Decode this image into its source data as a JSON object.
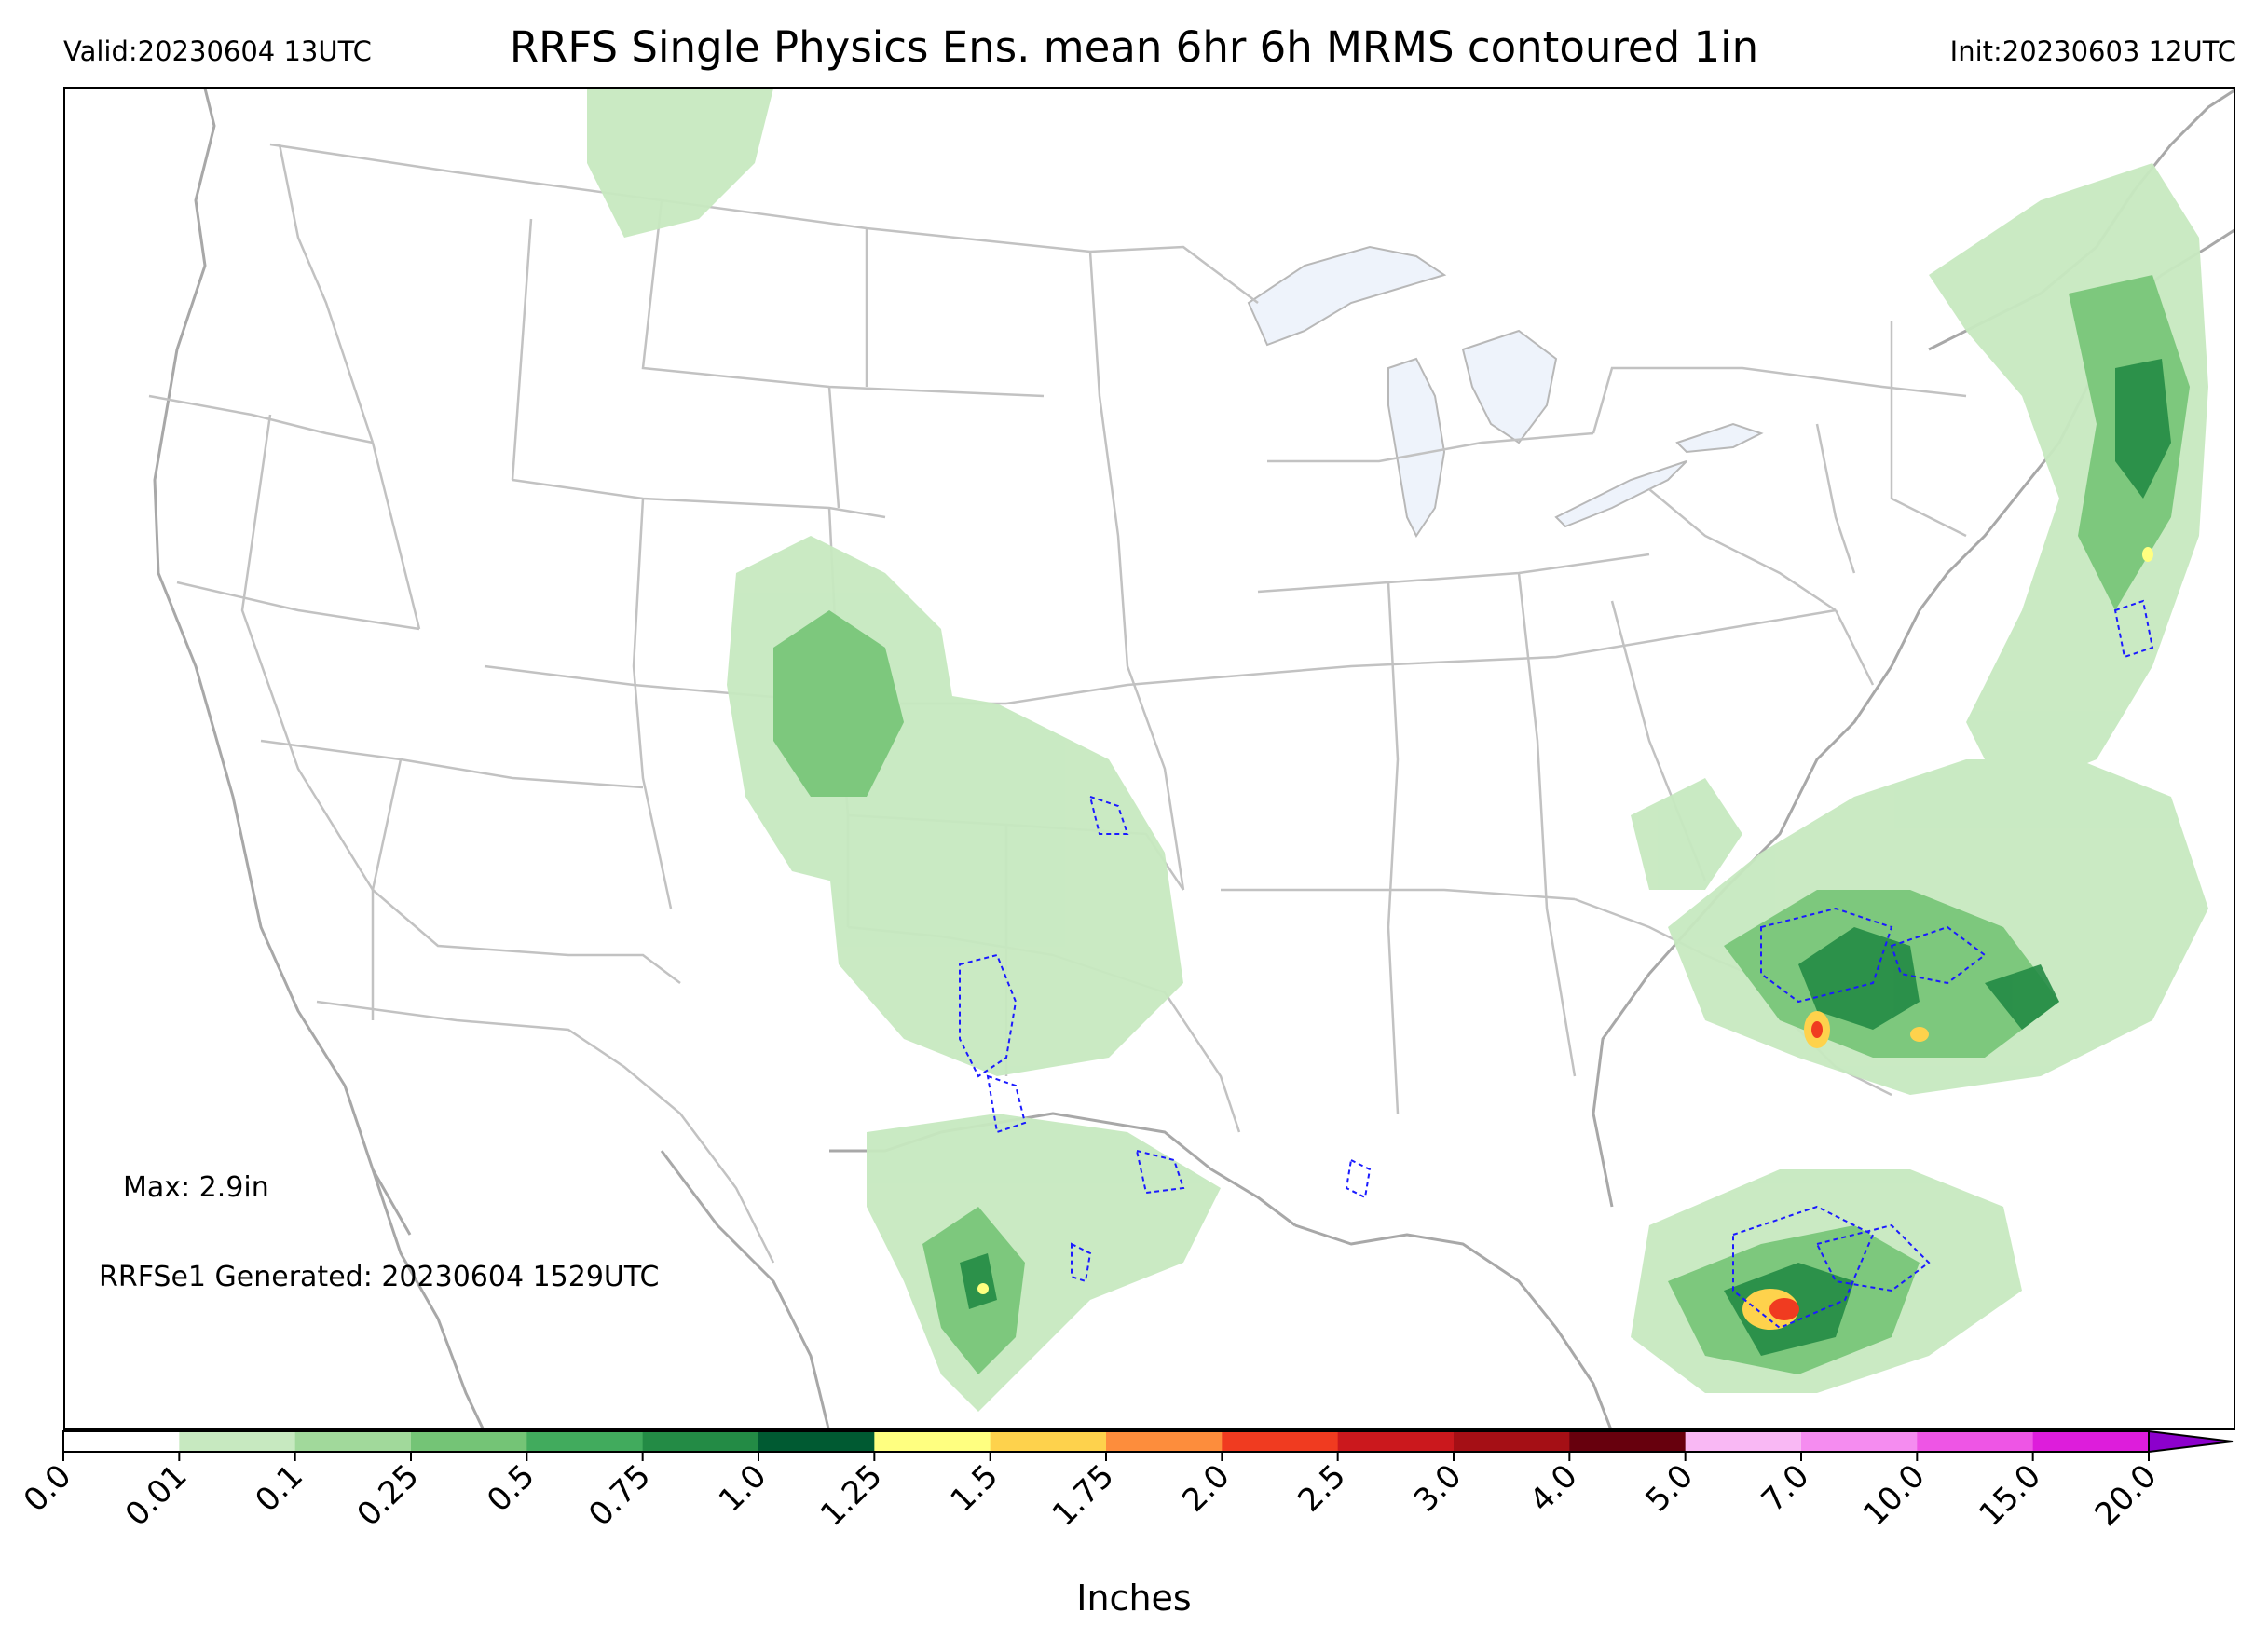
{
  "header": {
    "valid": "Valid:20230604 13UTC",
    "title": "RRFS Single Physics Ens. mean 6hr 6h MRMS contoured 1in",
    "init": "Init:20230603 12UTC"
  },
  "annotations": {
    "max": "Max: 2.9in",
    "generated": "RRFSe1 Generated: 20230604 1529UTC"
  },
  "colorbar": {
    "title": "Inches",
    "ticks": [
      "0.0",
      "0.01",
      "0.1",
      "0.25",
      "0.5",
      "0.75",
      "1.0",
      "1.25",
      "1.5",
      "1.75",
      "2.0",
      "2.5",
      "3.0",
      "4.0",
      "5.0",
      "7.0",
      "10.0",
      "15.0",
      "20.0"
    ],
    "colors": [
      "#ffffff",
      "#c7e9c0",
      "#a1d99b",
      "#74c476",
      "#41ab5d",
      "#238b45",
      "#005a32",
      "#ffff80",
      "#fed24c",
      "#fd8d3c",
      "#f03b20",
      "#cb181d",
      "#a50f15",
      "#67000d",
      "#f9b8f4",
      "#f58cf0",
      "#ee55e5",
      "#dd1ddb",
      "#b400c0",
      "#8c00cc"
    ]
  },
  "contour_color": "#1a1aff",
  "lake_color": "#eef3fb",
  "boundary_color": "#b0b0b0"
}
